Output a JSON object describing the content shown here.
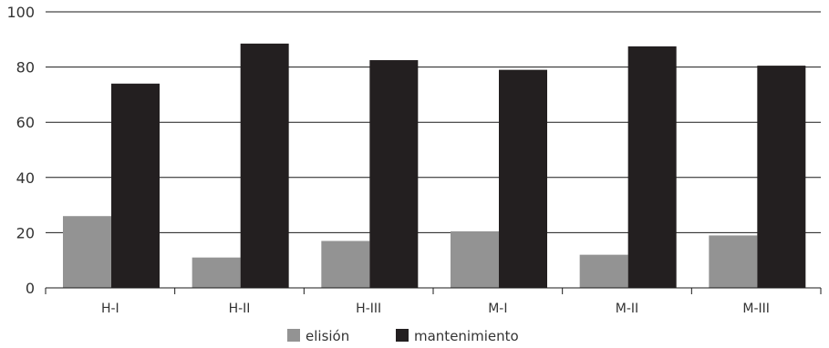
{
  "chart_data": {
    "type": "bar",
    "categories": [
      "H-I",
      "H-II",
      "H-III",
      "M-I",
      "M-II",
      "M-III"
    ],
    "series": [
      {
        "name": "elisión",
        "values": [
          26,
          11,
          17,
          20.5,
          12,
          19
        ],
        "color": "#939393"
      },
      {
        "name": "mantenimiento",
        "values": [
          74,
          88.5,
          82.5,
          79,
          87.5,
          80.5
        ],
        "color": "#231f20"
      }
    ],
    "ylim": [
      0,
      100
    ],
    "yticks": [
      0,
      20,
      40,
      60,
      80,
      100
    ],
    "grid": true,
    "legend": "bottom-center",
    "title": "",
    "xlabel": "",
    "ylabel": ""
  }
}
